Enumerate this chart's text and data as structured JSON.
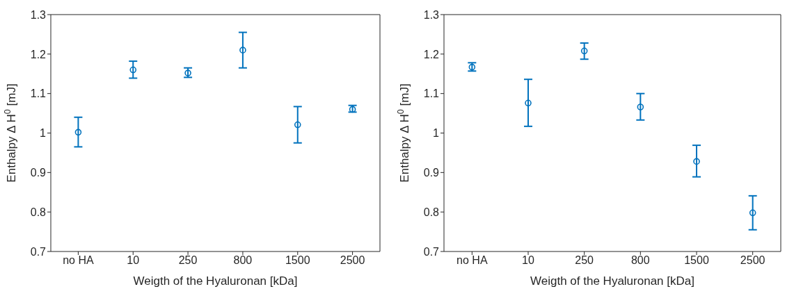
{
  "chart_data": [
    {
      "type": "scatter",
      "xlabel": "Weigth of the Hyaluronan [kDa]",
      "ylabel": "Enthalpy Δ H$^{0}$ [mJ]",
      "categories": [
        "no HA",
        "10",
        "250",
        "800",
        "1500",
        "2500"
      ],
      "ylim": [
        0.7,
        1.3
      ],
      "yticks": [
        0.7,
        0.8,
        0.9,
        1,
        1.1,
        1.2,
        1.3
      ],
      "grid": false,
      "marker": "circle",
      "series": [
        {
          "color": "#0072bd",
          "values": [
            1.002,
            1.16,
            1.152,
            1.21,
            1.021,
            1.06
          ],
          "errors": [
            [
              0.965,
              1.04
            ],
            [
              1.139,
              1.182
            ],
            [
              1.141,
              1.165
            ],
            [
              1.165,
              1.255
            ],
            [
              0.975,
              1.067
            ],
            [
              1.053,
              1.07
            ]
          ]
        }
      ]
    },
    {
      "type": "scatter",
      "xlabel": "Weigth of the Hyaluronan [kDa]",
      "ylabel": "Enthalpy Δ H$^{0}$ [mJ]",
      "categories": [
        "no HA",
        "10",
        "250",
        "800",
        "1500",
        "2500"
      ],
      "ylim": [
        0.7,
        1.3
      ],
      "yticks": [
        0.7,
        0.8,
        0.9,
        1,
        1.1,
        1.2,
        1.3
      ],
      "grid": false,
      "marker": "circle",
      "series": [
        {
          "color": "#0072bd",
          "values": [
            1.167,
            1.076,
            1.208,
            1.066,
            0.928,
            0.798
          ],
          "errors": [
            [
              1.157,
              1.178
            ],
            [
              1.017,
              1.136
            ],
            [
              1.187,
              1.228
            ],
            [
              1.033,
              1.1
            ],
            [
              0.889,
              0.969
            ],
            [
              0.755,
              0.841
            ]
          ]
        }
      ]
    }
  ]
}
